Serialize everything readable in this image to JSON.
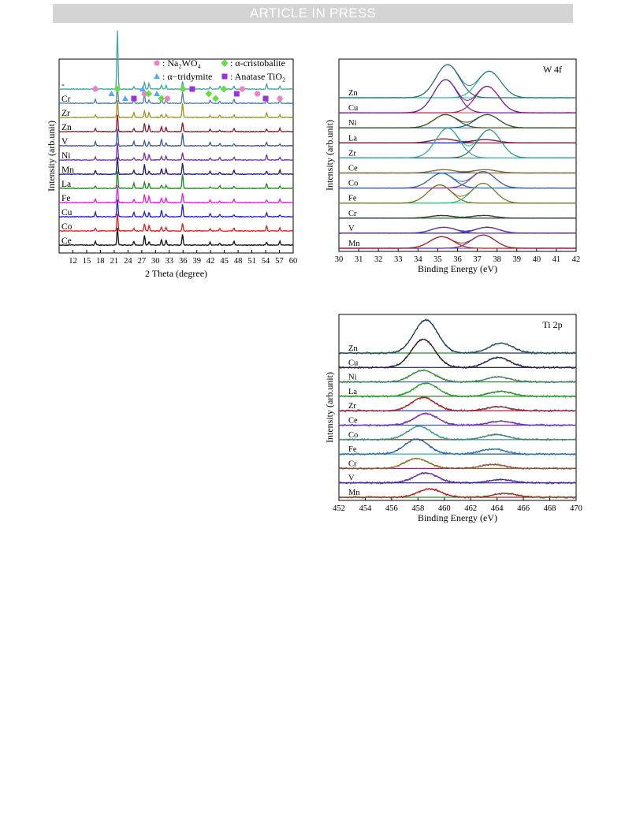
{
  "banner": "ARTICLE IN PRESS",
  "chart_data": [
    {
      "type": "line",
      "panel": "xrd",
      "xlabel": "2 Theta (degree)",
      "ylabel": "Intensity (arb.unit)",
      "xlim": [
        9,
        60
      ],
      "xticks": [
        12,
        15,
        18,
        21,
        24,
        27,
        30,
        33,
        36,
        39,
        42,
        45,
        48,
        51,
        54,
        57,
        60
      ],
      "series_labels": [
        "-",
        "Cr",
        "Zr",
        "Zn",
        "V",
        "Ni",
        "Mn",
        "La",
        "Fe",
        "Cu",
        "Co",
        "Ce"
      ],
      "series_colors": [
        "#3fa6a6",
        "#4e7fae",
        "#99991c",
        "#8b1a2a",
        "#3d5a9c",
        "#7b2fb3",
        "#1a1a7a",
        "#1f8a1f",
        "#e01ee0",
        "#2020d0",
        "#e02020",
        "#111111"
      ],
      "peaks": [
        16.9,
        21.7,
        25.3,
        27.6,
        28.6,
        31.3,
        32.3,
        35.9,
        41.9,
        44.0,
        47.1,
        54.2,
        57.1
      ],
      "legend": [
        {
          "marker": "circle",
          "color": "#ee82c8",
          "label": ": Na₂WO₄"
        },
        {
          "marker": "diamond",
          "color": "#66dd44",
          "label": ": α-cristobalite"
        },
        {
          "marker": "triangle",
          "color": "#55aaee",
          "label": ": α−tridymite"
        },
        {
          "marker": "square",
          "color": "#9933dd",
          "label": ": Anatase TiO₂"
        }
      ],
      "phase_markers": [
        {
          "x": 16.9,
          "marker": "circle"
        },
        {
          "x": 27.6,
          "marker": "circle"
        },
        {
          "x": 32.6,
          "marker": "circle"
        },
        {
          "x": 48.9,
          "marker": "circle"
        },
        {
          "x": 52.2,
          "marker": "circle"
        },
        {
          "x": 57.1,
          "marker": "circle"
        },
        {
          "x": 21.7,
          "marker": "diamond"
        },
        {
          "x": 28.5,
          "marker": "diamond"
        },
        {
          "x": 31.3,
          "marker": "diamond"
        },
        {
          "x": 36.0,
          "marker": "diamond"
        },
        {
          "x": 41.6,
          "marker": "diamond"
        },
        {
          "x": 43.1,
          "marker": "diamond"
        },
        {
          "x": 44.9,
          "marker": "diamond"
        },
        {
          "x": 20.4,
          "marker": "triangle"
        },
        {
          "x": 23.4,
          "marker": "triangle"
        },
        {
          "x": 27.2,
          "marker": "triangle"
        },
        {
          "x": 30.3,
          "marker": "triangle"
        },
        {
          "x": 25.3,
          "marker": "square"
        },
        {
          "x": 38.0,
          "marker": "square"
        },
        {
          "x": 47.7,
          "marker": "square"
        },
        {
          "x": 54.0,
          "marker": "square"
        }
      ]
    },
    {
      "type": "line",
      "panel": "w4f",
      "title": "W 4f",
      "xlabel": "Binding Energy (eV)",
      "ylabel": "Intensity (arb.unit)",
      "xlim": [
        30,
        42
      ],
      "xticks": [
        30,
        31,
        32,
        33,
        34,
        35,
        36,
        37,
        38,
        39,
        40,
        41,
        42
      ],
      "series": [
        {
          "name": "Zn",
          "peaks": [
            {
              "x": 35.5,
              "h": 1.0
            },
            {
              "x": 37.6,
              "h": 0.8
            }
          ],
          "colors": [
            "#2a6a7a",
            "#2fb8a0"
          ]
        },
        {
          "name": "Cu",
          "peaks": [
            {
              "x": 35.4,
              "h": 1.0
            },
            {
              "x": 37.5,
              "h": 0.8
            }
          ],
          "colors": [
            "#6a1aa0",
            "#aa2040"
          ]
        },
        {
          "name": "Ni",
          "peaks": [
            {
              "x": 35.4,
              "h": 0.4
            },
            {
              "x": 37.5,
              "h": 0.4
            }
          ],
          "colors": [
            "#404a10",
            "#1a5a8a"
          ]
        },
        {
          "name": "La",
          "peaks": [
            {
              "x": 35.3,
              "h": 0.12
            },
            {
              "x": 37.4,
              "h": 0.1
            }
          ],
          "colors": [
            "#8a2020",
            "#20208a"
          ]
        },
        {
          "name": "Zr",
          "peaks": [
            {
              "x": 35.5,
              "h": 0.9
            },
            {
              "x": 37.6,
              "h": 0.85
            }
          ],
          "colors": [
            "#3aa8a8",
            "#2a6a7a"
          ]
        },
        {
          "name": "Ce",
          "peaks": [
            {
              "x": 35.3,
              "h": 0.1
            },
            {
              "x": 37.4,
              "h": 0.1
            }
          ],
          "colors": [
            "#8a6a20",
            "#3a5a9a"
          ]
        },
        {
          "name": "Co",
          "peaks": [
            {
              "x": 35.2,
              "h": 0.45
            },
            {
              "x": 37.3,
              "h": 0.5
            }
          ],
          "colors": [
            "#2a6aaa",
            "#7a3aa0"
          ]
        },
        {
          "name": "Fe",
          "peaks": [
            {
              "x": 35.1,
              "h": 0.55
            },
            {
              "x": 37.3,
              "h": 0.6
            }
          ],
          "colors": [
            "#8a6a20",
            "#2ab870"
          ]
        },
        {
          "name": "Cr",
          "peaks": [
            {
              "x": 35.2,
              "h": 0.08
            },
            {
              "x": 37.3,
              "h": 0.08
            }
          ],
          "colors": [
            "#333333",
            "#2a6a2a"
          ]
        },
        {
          "name": "V",
          "peaks": [
            {
              "x": 35.3,
              "h": 0.18
            },
            {
              "x": 37.5,
              "h": 0.18
            }
          ],
          "colors": [
            "#5a2aaa",
            "#2a2a8a"
          ]
        },
        {
          "name": "Mn",
          "peaks": [
            {
              "x": 35.2,
              "h": 0.35
            },
            {
              "x": 37.3,
              "h": 0.4
            }
          ],
          "colors": [
            "#aa2020",
            "#5a2a9a"
          ]
        }
      ]
    },
    {
      "type": "line",
      "panel": "ti2p",
      "title": "Ti 2p",
      "xlabel": "Binding Energy (eV)",
      "ylabel": "Intensity (arb.unit)",
      "xlim": [
        452,
        470
      ],
      "xticks": [
        452,
        454,
        456,
        458,
        460,
        462,
        464,
        466,
        468,
        470
      ],
      "series": [
        {
          "name": "Zn",
          "peaks": [
            {
              "x": 458.6,
              "h": 1.0
            },
            {
              "x": 464.3,
              "h": 0.3
            }
          ],
          "colors": [
            "#1a3a6a",
            "#2a8a2a"
          ]
        },
        {
          "name": "Cu",
          "peaks": [
            {
              "x": 458.4,
              "h": 0.85
            },
            {
              "x": 464.1,
              "h": 0.3
            }
          ],
          "colors": [
            "#222222",
            "#2a2aaa"
          ]
        },
        {
          "name": "Ni",
          "peaks": [
            {
              "x": 458.4,
              "h": 0.35
            },
            {
              "x": 464.1,
              "h": 0.15
            }
          ],
          "colors": [
            "#3a8a3a",
            "#4a6aaa"
          ]
        },
        {
          "name": "La",
          "peaks": [
            {
              "x": 458.6,
              "h": 0.4
            },
            {
              "x": 464.3,
              "h": 0.15
            }
          ],
          "colors": [
            "#2a9a2a",
            "#3a7a3a"
          ]
        },
        {
          "name": "Zr",
          "peaks": [
            {
              "x": 458.4,
              "h": 0.4
            },
            {
              "x": 464.1,
              "h": 0.12
            }
          ],
          "colors": [
            "#aa2020",
            "#2a4a8a"
          ]
        },
        {
          "name": "Ce",
          "peaks": [
            {
              "x": 458.6,
              "h": 0.35
            },
            {
              "x": 464.3,
              "h": 0.12
            }
          ],
          "colors": [
            "#7a2ab0",
            "#3a5aaa"
          ]
        },
        {
          "name": "Co",
          "peaks": [
            {
              "x": 458.1,
              "h": 0.4
            },
            {
              "x": 463.9,
              "h": 0.15
            }
          ],
          "colors": [
            "#3a9a9a",
            "#6a4a20"
          ]
        },
        {
          "name": "Fe",
          "peaks": [
            {
              "x": 457.9,
              "h": 0.45
            },
            {
              "x": 463.7,
              "h": 0.15
            }
          ],
          "colors": [
            "#2a5aaa",
            "#3aaaaa"
          ]
        },
        {
          "name": "Cr",
          "peaks": [
            {
              "x": 457.9,
              "h": 0.3
            },
            {
              "x": 463.7,
              "h": 0.12
            }
          ],
          "colors": [
            "#8a6a20",
            "#aa2080"
          ]
        },
        {
          "name": "V",
          "peaks": [
            {
              "x": 458.6,
              "h": 0.3
            },
            {
              "x": 464.3,
              "h": 0.1
            }
          ],
          "colors": [
            "#5a2aaa",
            "#2a2a8a"
          ]
        },
        {
          "name": "Mn",
          "peaks": [
            {
              "x": 458.9,
              "h": 0.25
            },
            {
              "x": 464.6,
              "h": 0.12
            }
          ],
          "colors": [
            "#aa2020",
            "#2a8a2a"
          ]
        }
      ]
    }
  ]
}
